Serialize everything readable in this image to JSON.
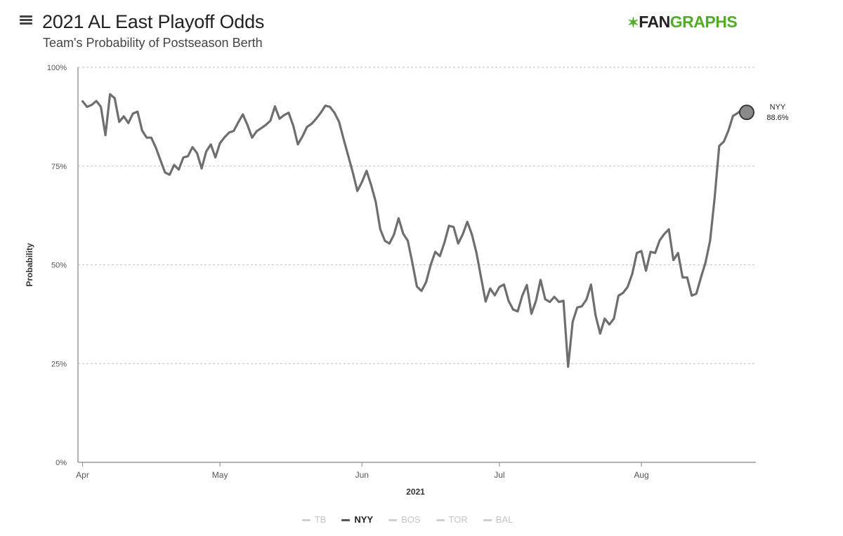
{
  "header": {
    "title": "2021 AL East Playoff Odds",
    "subtitle": "Team's Probability of Postseason Berth"
  },
  "logo": {
    "mark": "✶",
    "part1": "FAN",
    "part2": "GRAPHS"
  },
  "menu": {
    "icon": "hamburger-menu-icon"
  },
  "colors": {
    "line": "#6e6e6e",
    "grid": "#cccccc",
    "brand_green": "#50ae26",
    "legend_inactive": "#c4c4c4"
  },
  "chart_data": {
    "type": "line",
    "title": "2021 AL East Playoff Odds",
    "subtitle": "Team's Probability of Postseason Berth",
    "xlabel": "2021",
    "ylabel": "Probability",
    "ylim": [
      0,
      100
    ],
    "yticks": [
      {
        "value": 0,
        "label": "0%"
      },
      {
        "value": 25,
        "label": "25%"
      },
      {
        "value": 50,
        "label": "50%"
      },
      {
        "value": 75,
        "label": "75%"
      },
      {
        "value": 100,
        "label": "100%"
      }
    ],
    "xlim": [
      "2021-03-31",
      "2021-08-26"
    ],
    "xticks": [
      {
        "date": "2021-04-01",
        "label": "Apr"
      },
      {
        "date": "2021-05-01",
        "label": "May"
      },
      {
        "date": "2021-06-01",
        "label": "Jun"
      },
      {
        "date": "2021-07-01",
        "label": "Jul"
      },
      {
        "date": "2021-08-01",
        "label": "Aug"
      }
    ],
    "grid": true,
    "legend_position": "bottom",
    "legend": [
      {
        "name": "TB",
        "active": false
      },
      {
        "name": "NYY",
        "active": true
      },
      {
        "name": "BOS",
        "active": false
      },
      {
        "name": "TOR",
        "active": false
      },
      {
        "name": "BAL",
        "active": false
      }
    ],
    "series": [
      {
        "name": "NYY",
        "end_label": "NYY",
        "end_value_label": "88.6%",
        "points": [
          [
            "2021-04-01",
            91.4
          ],
          [
            "2021-04-02",
            90.0
          ],
          [
            "2021-04-03",
            90.5
          ],
          [
            "2021-04-04",
            91.5
          ],
          [
            "2021-04-05",
            90.0
          ],
          [
            "2021-04-06",
            82.8
          ],
          [
            "2021-04-07",
            93.2
          ],
          [
            "2021-04-08",
            92.2
          ],
          [
            "2021-04-09",
            86.2
          ],
          [
            "2021-04-10",
            87.6
          ],
          [
            "2021-04-11",
            85.9
          ],
          [
            "2021-04-12",
            88.3
          ],
          [
            "2021-04-13",
            88.8
          ],
          [
            "2021-04-14",
            84.0
          ],
          [
            "2021-04-15",
            82.2
          ],
          [
            "2021-04-16",
            82.2
          ],
          [
            "2021-04-17",
            79.7
          ],
          [
            "2021-04-18",
            76.5
          ],
          [
            "2021-04-19",
            73.4
          ],
          [
            "2021-04-20",
            72.8
          ],
          [
            "2021-04-21",
            75.3
          ],
          [
            "2021-04-22",
            74.1
          ],
          [
            "2021-04-23",
            77.2
          ],
          [
            "2021-04-24",
            77.5
          ],
          [
            "2021-04-25",
            79.8
          ],
          [
            "2021-04-26",
            78.3
          ],
          [
            "2021-04-27",
            74.4
          ],
          [
            "2021-04-28",
            78.7
          ],
          [
            "2021-04-29",
            80.5
          ],
          [
            "2021-04-30",
            77.2
          ],
          [
            "2021-05-01",
            80.8
          ],
          [
            "2021-05-02",
            82.3
          ],
          [
            "2021-05-03",
            83.5
          ],
          [
            "2021-05-04",
            83.9
          ],
          [
            "2021-05-05",
            86.1
          ],
          [
            "2021-05-06",
            88.1
          ],
          [
            "2021-05-07",
            85.4
          ],
          [
            "2021-05-08",
            82.2
          ],
          [
            "2021-05-09",
            83.8
          ],
          [
            "2021-05-10",
            84.6
          ],
          [
            "2021-05-11",
            85.4
          ],
          [
            "2021-05-12",
            86.5
          ],
          [
            "2021-05-13",
            90.1
          ],
          [
            "2021-05-14",
            87.0
          ],
          [
            "2021-05-15",
            87.9
          ],
          [
            "2021-05-16",
            88.5
          ],
          [
            "2021-05-17",
            85.2
          ],
          [
            "2021-05-18",
            80.5
          ],
          [
            "2021-05-19",
            82.5
          ],
          [
            "2021-05-20",
            84.9
          ],
          [
            "2021-05-21",
            85.7
          ],
          [
            "2021-05-22",
            87.0
          ],
          [
            "2021-05-23",
            88.5
          ],
          [
            "2021-05-24",
            90.3
          ],
          [
            "2021-05-25",
            90.0
          ],
          [
            "2021-05-26",
            88.5
          ],
          [
            "2021-05-27",
            86.2
          ],
          [
            "2021-05-28",
            81.8
          ],
          [
            "2021-05-29",
            77.6
          ],
          [
            "2021-05-30",
            73.4
          ],
          [
            "2021-05-31",
            68.7
          ],
          [
            "2021-06-01",
            71.0
          ],
          [
            "2021-06-02",
            73.8
          ],
          [
            "2021-06-03",
            70.2
          ],
          [
            "2021-06-04",
            66.0
          ],
          [
            "2021-06-05",
            59.0
          ],
          [
            "2021-06-06",
            56.1
          ],
          [
            "2021-06-07",
            55.4
          ],
          [
            "2021-06-08",
            57.7
          ],
          [
            "2021-06-09",
            61.8
          ],
          [
            "2021-06-10",
            57.9
          ],
          [
            "2021-06-11",
            56.1
          ],
          [
            "2021-06-12",
            50.5
          ],
          [
            "2021-06-13",
            44.5
          ],
          [
            "2021-06-14",
            43.4
          ],
          [
            "2021-06-15",
            45.6
          ],
          [
            "2021-06-16",
            50.0
          ],
          [
            "2021-06-17",
            53.3
          ],
          [
            "2021-06-18",
            52.2
          ],
          [
            "2021-06-19",
            55.6
          ],
          [
            "2021-06-20",
            59.9
          ],
          [
            "2021-06-21",
            59.6
          ],
          [
            "2021-06-22",
            55.4
          ],
          [
            "2021-06-23",
            57.7
          ],
          [
            "2021-06-24",
            60.9
          ],
          [
            "2021-06-25",
            57.7
          ],
          [
            "2021-06-26",
            53.0
          ],
          [
            "2021-06-27",
            46.8
          ],
          [
            "2021-06-28",
            40.7
          ],
          [
            "2021-06-29",
            44.0
          ],
          [
            "2021-06-30",
            42.3
          ],
          [
            "2021-07-01",
            44.4
          ],
          [
            "2021-07-02",
            45.0
          ],
          [
            "2021-07-03",
            40.9
          ],
          [
            "2021-07-04",
            38.7
          ],
          [
            "2021-07-05",
            38.2
          ],
          [
            "2021-07-06",
            42.2
          ],
          [
            "2021-07-07",
            44.9
          ],
          [
            "2021-07-08",
            37.6
          ],
          [
            "2021-07-09",
            40.9
          ],
          [
            "2021-07-10",
            46.2
          ],
          [
            "2021-07-11",
            41.3
          ],
          [
            "2021-07-12",
            40.6
          ],
          [
            "2021-07-13",
            41.9
          ],
          [
            "2021-07-14",
            40.6
          ],
          [
            "2021-07-15",
            40.9
          ],
          [
            "2021-07-16",
            24.2
          ],
          [
            "2021-07-17",
            35.6
          ],
          [
            "2021-07-18",
            39.2
          ],
          [
            "2021-07-19",
            39.5
          ],
          [
            "2021-07-20",
            41.2
          ],
          [
            "2021-07-21",
            45.0
          ],
          [
            "2021-07-22",
            37.2
          ],
          [
            "2021-07-23",
            32.6
          ],
          [
            "2021-07-24",
            36.4
          ],
          [
            "2021-07-25",
            34.9
          ],
          [
            "2021-07-26",
            36.4
          ],
          [
            "2021-07-27",
            42.2
          ],
          [
            "2021-07-28",
            42.9
          ],
          [
            "2021-07-29",
            44.4
          ],
          [
            "2021-07-30",
            47.7
          ],
          [
            "2021-07-31",
            53.0
          ],
          [
            "2021-08-01",
            53.5
          ],
          [
            "2021-08-02",
            48.5
          ],
          [
            "2021-08-03",
            53.3
          ],
          [
            "2021-08-04",
            53.0
          ],
          [
            "2021-08-05",
            56.2
          ],
          [
            "2021-08-06",
            57.8
          ],
          [
            "2021-08-07",
            59.0
          ],
          [
            "2021-08-08",
            51.2
          ],
          [
            "2021-08-09",
            53.0
          ],
          [
            "2021-08-10",
            46.8
          ],
          [
            "2021-08-11",
            46.8
          ],
          [
            "2021-08-12",
            42.2
          ],
          [
            "2021-08-13",
            42.7
          ],
          [
            "2021-08-14",
            46.8
          ],
          [
            "2021-08-15",
            50.6
          ],
          [
            "2021-08-16",
            56.1
          ],
          [
            "2021-08-17",
            67.0
          ],
          [
            "2021-08-18",
            80.1
          ],
          [
            "2021-08-19",
            81.2
          ],
          [
            "2021-08-20",
            84.0
          ],
          [
            "2021-08-21",
            87.7
          ],
          [
            "2021-08-22",
            88.4
          ],
          [
            "2021-08-23",
            89.4
          ],
          [
            "2021-08-24",
            88.6
          ]
        ]
      }
    ]
  }
}
